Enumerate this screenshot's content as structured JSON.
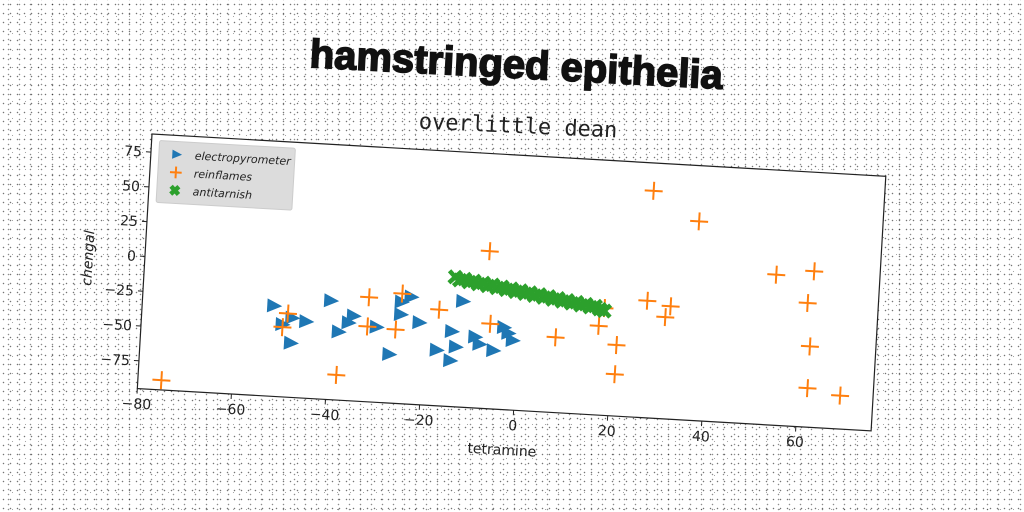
{
  "chart_data": {
    "type": "scatter",
    "title": "hamstringed epithelia",
    "subtitle": "overlittle dean",
    "xlabel": "tetramine",
    "ylabel": "chengal",
    "xlim": [
      -80,
      76
    ],
    "ylim": [
      -95,
      88
    ],
    "x_ticks": [
      -80,
      -60,
      -40,
      -20,
      0,
      20,
      40,
      60
    ],
    "y_ticks": [
      -75,
      -50,
      -25,
      0,
      25,
      50,
      75
    ],
    "grid": false,
    "legend": "top-left",
    "series": [
      {
        "name": "electropyrometer",
        "marker": "triangle-right",
        "color": "#1f77b4",
        "points": [
          [
            -52,
            -30
          ],
          [
            -50,
            -43
          ],
          [
            -48,
            -38
          ],
          [
            -48,
            -56
          ],
          [
            -45,
            -40
          ],
          [
            -40,
            -24
          ],
          [
            -38,
            -46
          ],
          [
            -36,
            -39
          ],
          [
            -35,
            -34
          ],
          [
            -30,
            -41
          ],
          [
            -27,
            -60
          ],
          [
            -25,
            -22
          ],
          [
            -25,
            -31
          ],
          [
            -23,
            -18
          ],
          [
            -21,
            -36
          ],
          [
            -17,
            -55
          ],
          [
            -14,
            -41
          ],
          [
            -14,
            -62
          ],
          [
            -13,
            -52
          ],
          [
            -12,
            -19
          ],
          [
            -9,
            -44
          ],
          [
            -8,
            -49
          ],
          [
            -5,
            -53
          ],
          [
            -3,
            -36
          ],
          [
            -2,
            -40
          ],
          [
            -1,
            -45
          ]
        ]
      },
      {
        "name": "reinflames",
        "marker": "plus",
        "color": "#ff7f0e",
        "points": [
          [
            -75,
            -88
          ],
          [
            -50,
            -45
          ],
          [
            -49,
            -35
          ],
          [
            -38,
            -77
          ],
          [
            -32,
            -20
          ],
          [
            -32,
            -41
          ],
          [
            -26,
            -42
          ],
          [
            -25,
            -16
          ],
          [
            -17,
            -26
          ],
          [
            -7,
            18
          ],
          [
            -6,
            -34
          ],
          [
            8,
            -41
          ],
          [
            17,
            -31
          ],
          [
            18,
            -18
          ],
          [
            21,
            -44
          ],
          [
            21,
            -65
          ],
          [
            27,
            68
          ],
          [
            27,
            -11
          ],
          [
            31,
            -22
          ],
          [
            32,
            -14
          ],
          [
            37,
            48
          ],
          [
            54,
            13
          ],
          [
            61,
            -6
          ],
          [
            62,
            17
          ],
          [
            62,
            -67
          ],
          [
            62,
            -37
          ],
          [
            69,
            -71
          ]
        ]
      },
      {
        "name": "antitarnish",
        "marker": "x",
        "color": "#2ca02c",
        "points": [
          [
            -14,
            -2
          ],
          [
            -13,
            -4
          ],
          [
            -12,
            -3
          ],
          [
            -11,
            -5
          ],
          [
            -10,
            -4
          ],
          [
            -9,
            -6
          ],
          [
            -8,
            -5
          ],
          [
            -7,
            -7
          ],
          [
            -6,
            -6
          ],
          [
            -5,
            -8
          ],
          [
            -4,
            -7
          ],
          [
            -3,
            -9
          ],
          [
            -2,
            -8
          ],
          [
            -1,
            -10
          ],
          [
            0,
            -9
          ],
          [
            1,
            -11
          ],
          [
            2,
            -10
          ],
          [
            3,
            -12
          ],
          [
            4,
            -11
          ],
          [
            5,
            -13
          ],
          [
            6,
            -12
          ],
          [
            7,
            -14
          ],
          [
            8,
            -13
          ],
          [
            9,
            -15
          ],
          [
            10,
            -14
          ],
          [
            11,
            -16
          ],
          [
            12,
            -15
          ],
          [
            13,
            -17
          ],
          [
            14,
            -16
          ],
          [
            15,
            -18
          ],
          [
            16,
            -17
          ],
          [
            17,
            -19
          ],
          [
            18,
            -20
          ]
        ]
      }
    ]
  }
}
